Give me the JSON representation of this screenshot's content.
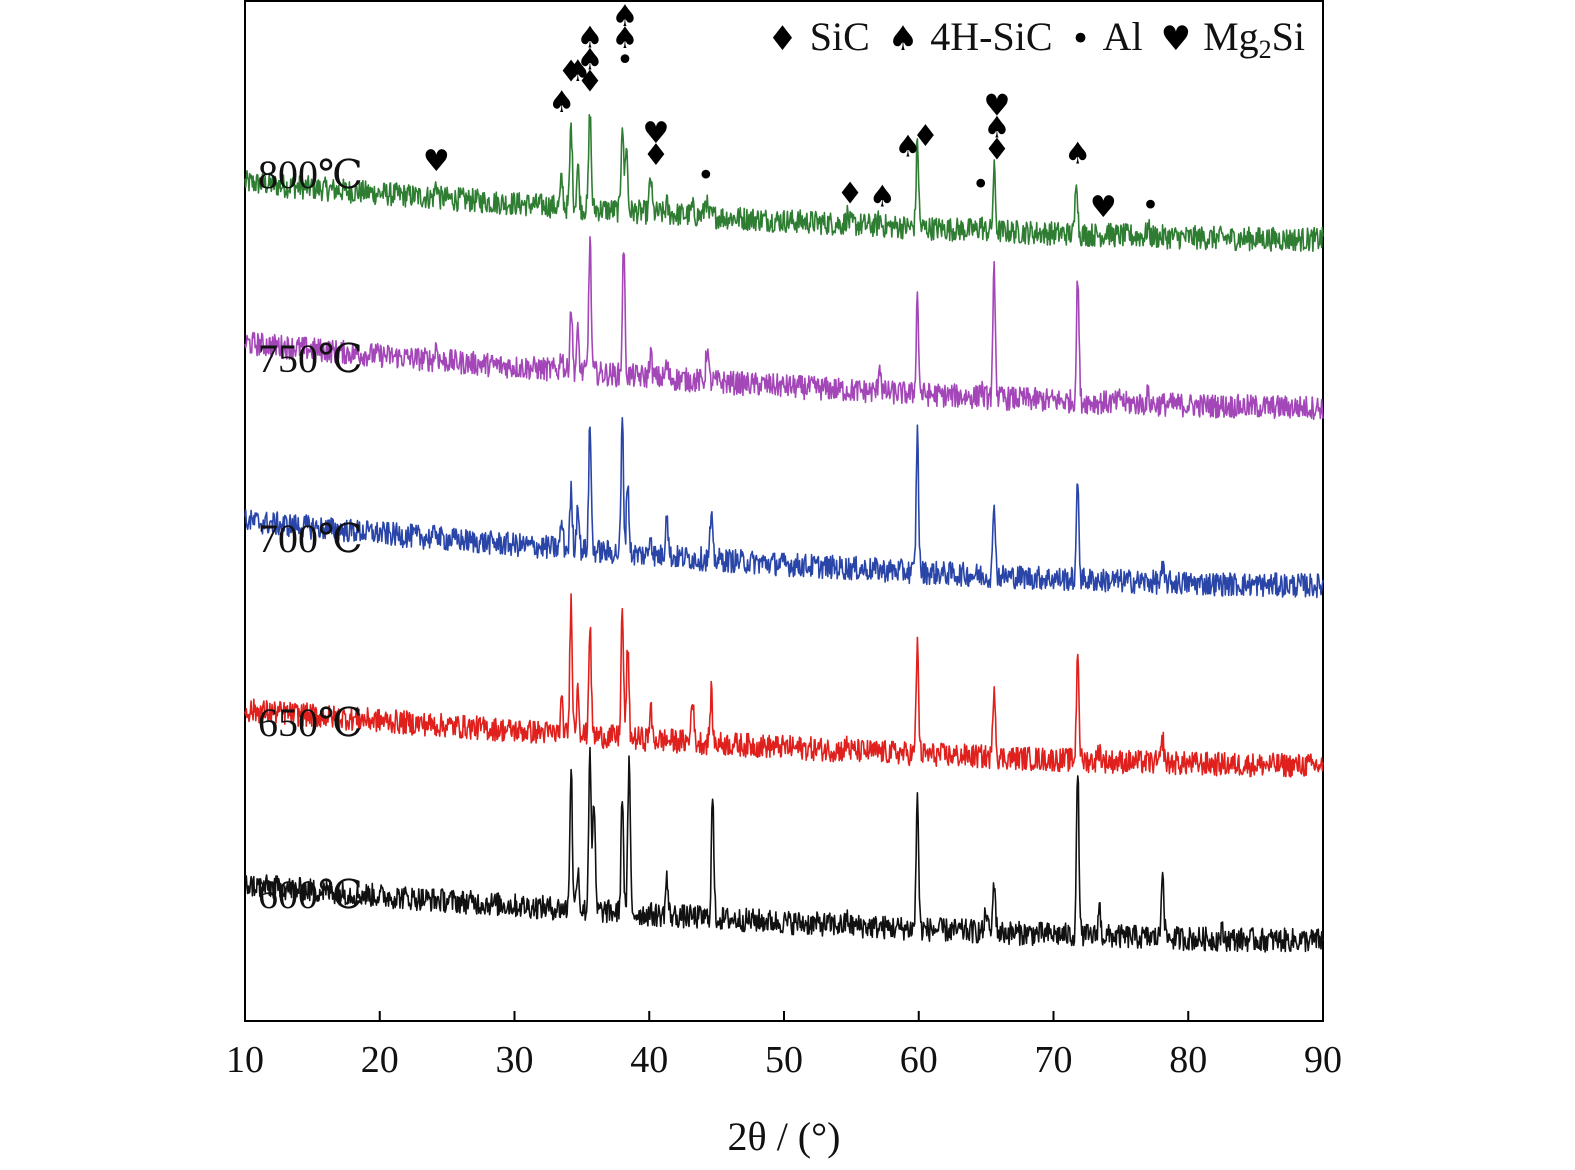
{
  "chart_data": {
    "type": "line",
    "title": "",
    "xlabel": "2θ / (°)",
    "ylabel": "",
    "xlim": [
      10,
      90
    ],
    "xticks": [
      "10",
      "20",
      "30",
      "40",
      "50",
      "60",
      "70",
      "80",
      "90"
    ],
    "grid": false,
    "stacked_offsets": true,
    "legend_position": "top-right",
    "legend": [
      {
        "symbol": "♦",
        "label": "SiC",
        "icon": "diamond-icon"
      },
      {
        "symbol": "♠",
        "label": "4H-SiC",
        "icon": "spade-icon"
      },
      {
        "symbol": "•",
        "label": "Al",
        "icon": "dot-icon"
      },
      {
        "symbol": "♥",
        "label": "Mg",
        "sub": "2",
        "suffix": "Si",
        "icon": "heart-icon"
      }
    ],
    "series": [
      {
        "name": "800℃",
        "color": "#2e7d32",
        "baseline": [
          10,
          0.57,
          90,
          0.19
        ],
        "peaks": [
          [
            24.2,
            0.1
          ],
          [
            33.5,
            0.18
          ],
          [
            34.2,
            0.55
          ],
          [
            34.7,
            0.28
          ],
          [
            35.6,
            0.66
          ],
          [
            38.0,
            0.6
          ],
          [
            38.3,
            0.45
          ],
          [
            40.1,
            0.24
          ],
          [
            41.3,
            0.06
          ],
          [
            43.2,
            0.05
          ],
          [
            44.2,
            0.12
          ],
          [
            54.7,
            0.06
          ],
          [
            57.1,
            0.05
          ],
          [
            59.9,
            0.58
          ],
          [
            64.6,
            0.05
          ],
          [
            65.6,
            0.4
          ],
          [
            71.7,
            0.4
          ],
          [
            74.0,
            0.04
          ],
          [
            77.0,
            0.06
          ]
        ]
      },
      {
        "name": "750℃",
        "color": "#a347b8",
        "baseline": [
          10,
          0.68,
          90,
          0.25
        ],
        "peaks": [
          [
            24.2,
            0.1
          ],
          [
            33.5,
            0.12
          ],
          [
            34.2,
            0.44
          ],
          [
            34.7,
            0.26
          ],
          [
            35.6,
            0.9
          ],
          [
            38.1,
            0.87
          ],
          [
            40.1,
            0.16
          ],
          [
            41.3,
            0.09
          ],
          [
            44.3,
            0.23
          ],
          [
            57.1,
            0.2
          ],
          [
            59.9,
            0.65
          ],
          [
            64.6,
            0.07
          ],
          [
            65.6,
            0.85
          ],
          [
            71.8,
            0.85
          ],
          [
            75.0,
            0.05
          ],
          [
            77.0,
            0.06
          ]
        ]
      },
      {
        "name": "700℃",
        "color": "#2a45a8",
        "baseline": [
          10,
          0.68,
          90,
          0.25
        ],
        "peaks": [
          [
            24.2,
            0.06
          ],
          [
            33.5,
            0.18
          ],
          [
            34.2,
            0.38
          ],
          [
            34.7,
            0.33
          ],
          [
            35.6,
            0.85
          ],
          [
            38.0,
            0.87
          ],
          [
            38.4,
            0.5
          ],
          [
            40.1,
            0.15
          ],
          [
            41.3,
            0.33
          ],
          [
            44.6,
            0.28
          ],
          [
            59.9,
            0.93
          ],
          [
            65.6,
            0.5
          ],
          [
            71.8,
            0.66
          ],
          [
            78.1,
            0.08
          ]
        ]
      },
      {
        "name": "650℃",
        "color": "#e0201c",
        "baseline": [
          10,
          0.62,
          90,
          0.25
        ],
        "peaks": [
          [
            33.5,
            0.2
          ],
          [
            34.2,
            0.9
          ],
          [
            34.7,
            0.35
          ],
          [
            35.6,
            0.75
          ],
          [
            38.0,
            0.85
          ],
          [
            38.4,
            0.6
          ],
          [
            40.1,
            0.2
          ],
          [
            43.2,
            0.32
          ],
          [
            44.6,
            0.33
          ],
          [
            54.7,
            0.05
          ],
          [
            59.9,
            0.73
          ],
          [
            65.6,
            0.5
          ],
          [
            71.8,
            0.75
          ],
          [
            73.4,
            0.08
          ],
          [
            78.1,
            0.16
          ]
        ]
      },
      {
        "name": "600℃",
        "color": "#111111",
        "baseline": [
          10,
          0.62,
          90,
          0.25
        ],
        "peaks": [
          [
            34.2,
            0.95
          ],
          [
            34.7,
            0.3
          ],
          [
            35.6,
            1.1
          ],
          [
            35.9,
            0.7
          ],
          [
            38.0,
            0.8
          ],
          [
            38.5,
            1.0
          ],
          [
            41.3,
            0.25
          ],
          [
            44.7,
            0.8
          ],
          [
            54.7,
            0.05
          ],
          [
            59.9,
            0.9
          ],
          [
            65.0,
            0.15
          ],
          [
            65.6,
            0.35
          ],
          [
            71.8,
            1.1
          ],
          [
            73.4,
            0.2
          ],
          [
            78.1,
            0.5
          ],
          [
            82.5,
            0.05
          ]
        ]
      }
    ],
    "annotations": [
      {
        "series": "800℃",
        "x": 24.2,
        "symbols": [
          "♥"
        ]
      },
      {
        "series": "800℃",
        "x": 33.5,
        "symbols": [
          "♠"
        ]
      },
      {
        "series": "800℃",
        "x": 34.2,
        "symbols": [
          "♦"
        ]
      },
      {
        "series": "800℃",
        "x": 34.7,
        "symbols": [
          "♠"
        ]
      },
      {
        "series": "800℃",
        "x": 35.6,
        "symbols": [
          "♦",
          "♠",
          "♠"
        ]
      },
      {
        "series": "800℃",
        "x": 38.2,
        "symbols": [
          "•",
          "♠",
          "♠"
        ]
      },
      {
        "series": "800℃",
        "x": 40.5,
        "symbols": [
          "♦",
          "♥"
        ]
      },
      {
        "series": "800℃",
        "x": 44.2,
        "symbols": [
          "•"
        ]
      },
      {
        "series": "800℃",
        "x": 54.9,
        "symbols": [
          "♦"
        ]
      },
      {
        "series": "800℃",
        "x": 57.3,
        "symbols": [
          "♠"
        ]
      },
      {
        "series": "800℃",
        "x": 59.2,
        "symbols": [
          "♠"
        ]
      },
      {
        "series": "800℃",
        "x": 60.5,
        "symbols": [
          "♦"
        ]
      },
      {
        "series": "800℃",
        "x": 64.6,
        "symbols": [
          "•"
        ]
      },
      {
        "series": "800℃",
        "x": 65.8,
        "symbols": [
          "♦",
          "♠",
          "♥"
        ]
      },
      {
        "series": "800℃",
        "x": 71.8,
        "symbols": [
          "♠"
        ]
      },
      {
        "series": "800℃",
        "x": 73.7,
        "symbols": [
          "♥"
        ]
      },
      {
        "series": "800℃",
        "x": 77.2,
        "symbols": [
          "•"
        ]
      }
    ]
  }
}
